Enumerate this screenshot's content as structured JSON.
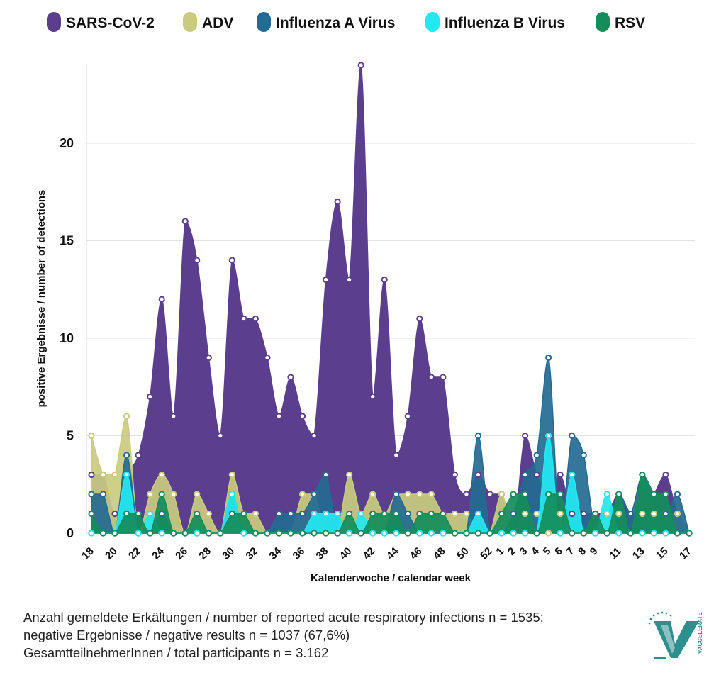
{
  "chart_data": {
    "type": "area",
    "xlabel": "Kalenderwoche / calendar week",
    "ylabel": "positive Ergebnisse / number of detections",
    "ylim": [
      0,
      24
    ],
    "yticks": [
      0,
      5,
      10,
      15,
      20
    ],
    "grid": "horizontal",
    "legend_position": "top",
    "x": [
      18,
      19,
      20,
      21,
      22,
      23,
      24,
      25,
      26,
      27,
      28,
      29,
      30,
      31,
      32,
      33,
      34,
      35,
      36,
      37,
      38,
      39,
      40,
      41,
      42,
      43,
      44,
      45,
      46,
      47,
      48,
      49,
      50,
      51,
      52,
      1,
      2,
      3,
      4,
      5,
      6,
      7,
      8,
      9,
      10,
      11,
      12,
      13,
      14,
      15,
      16,
      17
    ],
    "xtick_labels": [
      "18",
      "20",
      "22",
      "24",
      "26",
      "28",
      "30",
      "32",
      "34",
      "36",
      "38",
      "40",
      "42",
      "44",
      "46",
      "48",
      "50",
      "52",
      "1",
      "2",
      "3",
      "4",
      "5",
      "6",
      "7",
      "8",
      "9",
      "11",
      "13",
      "15",
      "17"
    ],
    "series": [
      {
        "name": "SARS-CoV-2",
        "color": "#5b3f8e",
        "values": [
          3,
          3,
          1,
          3,
          4,
          7,
          12,
          6,
          16,
          14,
          9,
          5,
          14,
          11,
          11,
          9,
          6,
          8,
          6,
          5,
          13,
          17,
          13,
          24,
          7,
          13,
          4,
          6,
          11,
          8,
          8,
          3,
          2,
          3,
          2,
          2,
          0,
          5,
          3,
          2,
          3,
          1,
          1,
          1,
          1,
          2,
          1,
          1,
          2,
          3,
          1,
          0
        ]
      },
      {
        "name": "ADV",
        "color": "#c9cc7f",
        "values": [
          5,
          3,
          3,
          6,
          0,
          2,
          3,
          2,
          0,
          2,
          1,
          0,
          3,
          1,
          1,
          0,
          0,
          0,
          2,
          2,
          0,
          0,
          3,
          1,
          2,
          1,
          2,
          2,
          2,
          2,
          1,
          1,
          1,
          0,
          0,
          2,
          0,
          1,
          1,
          0,
          1,
          0,
          0,
          0,
          1,
          1,
          0,
          1,
          1,
          1,
          1,
          0
        ]
      },
      {
        "name": "Influenza A Virus",
        "color": "#246a92",
        "values": [
          2,
          2,
          0,
          4,
          0,
          0,
          1,
          0,
          0,
          0,
          0,
          0,
          2,
          0,
          0,
          0,
          1,
          1,
          1,
          2,
          3,
          0,
          0,
          0,
          0,
          0,
          2,
          1,
          0,
          0,
          0,
          0,
          0,
          5,
          0,
          0,
          1,
          3,
          4,
          9,
          0,
          5,
          4,
          0,
          0,
          2,
          1,
          3,
          2,
          1,
          2,
          0
        ]
      },
      {
        "name": "Influenza B Virus",
        "color": "#22e8f2",
        "values": [
          0,
          0,
          0,
          3,
          0,
          1,
          0,
          0,
          0,
          0,
          0,
          0,
          2,
          0,
          0,
          0,
          0,
          0,
          0,
          1,
          1,
          1,
          0,
          1,
          0,
          0,
          0,
          0,
          0,
          0,
          0,
          0,
          0,
          1,
          0,
          0,
          0,
          0,
          0,
          5,
          0,
          3,
          0,
          0,
          2,
          0,
          0,
          0,
          0,
          0,
          0,
          0
        ]
      },
      {
        "name": "RSV",
        "color": "#148d5b",
        "values": [
          1,
          0,
          0,
          1,
          1,
          0,
          2,
          0,
          0,
          1,
          0,
          0,
          1,
          1,
          0,
          0,
          0,
          0,
          0,
          0,
          0,
          0,
          1,
          0,
          1,
          1,
          1,
          0,
          1,
          1,
          1,
          0,
          0,
          0,
          0,
          1,
          2,
          2,
          0,
          2,
          2,
          0,
          0,
          1,
          0,
          2,
          0,
          3,
          2,
          2,
          0,
          0
        ]
      }
    ],
    "annotations": [
      "Anzahl gemeldete Erkältungen / number of reported acute respiratory infections n = 1535;",
      "negative Ergebnisse / negative results n = 1037 (67,6%)",
      "GesamtteilnehmerInnen / total participants n = 3.162"
    ]
  },
  "logo_text": "VACCELERATE"
}
